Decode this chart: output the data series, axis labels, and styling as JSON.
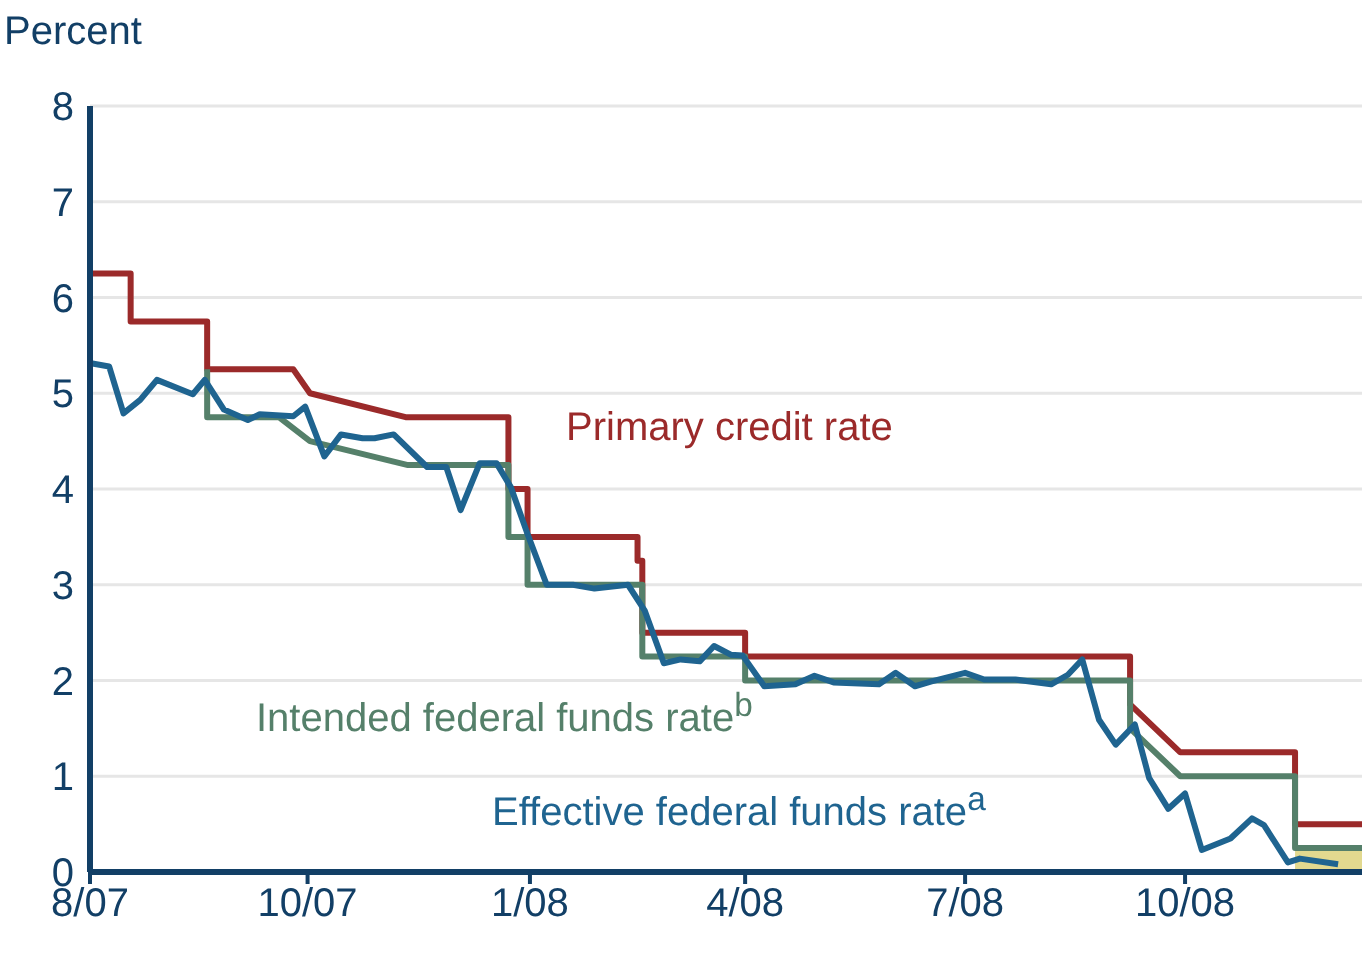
{
  "chart_data": {
    "type": "line",
    "ylabel": "Percent",
    "ylim": [
      0,
      8
    ],
    "yticks": [
      0,
      1,
      2,
      3,
      4,
      5,
      6,
      7,
      8
    ],
    "xlim": [
      "2007-07-31",
      "2009-01-13"
    ],
    "xticks": [
      {
        "value": "2007-07-31",
        "label": "8/07"
      },
      {
        "value": "2007-10-30",
        "label": "10/07"
      },
      {
        "value": "2008-01-31",
        "label": "1/08"
      },
      {
        "value": "2008-04-30",
        "label": "4/08"
      },
      {
        "value": "2008-07-31",
        "label": "7/08"
      },
      {
        "value": "2008-10-31",
        "label": "10/08"
      }
    ],
    "grid": "y",
    "marker": "none",
    "line_style": "solid",
    "series": [
      {
        "type": "area",
        "color": "#e2d98f",
        "x": [
          "2008-12-16",
          "2009-01-13"
        ],
        "values": [
          0.25,
          0.25
        ]
      },
      {
        "name": "Primary credit rate",
        "color": "#9b2a2a",
        "x": [
          "2007-07-31",
          "2007-08-17",
          "2007-08-17",
          "2007-09-18",
          "2007-09-18",
          "2007-10-24",
          "2007-10-31",
          "2007-12-10",
          "2008-01-22",
          "2008-01-22",
          "2008-01-30",
          "2008-01-30",
          "2008-03-16",
          "2008-03-16",
          "2008-03-18",
          "2008-03-18",
          "2008-04-30",
          "2008-04-30",
          "2008-10-08",
          "2008-10-08",
          "2008-10-29",
          "2008-12-16",
          "2008-12-16",
          "2009-01-13"
        ],
        "values": [
          6.25,
          6.25,
          5.75,
          5.75,
          5.25,
          5.25,
          5.0,
          4.75,
          4.75,
          4.0,
          4.0,
          3.5,
          3.5,
          3.25,
          3.25,
          2.5,
          2.5,
          2.25,
          2.25,
          1.75,
          1.25,
          1.25,
          0.5,
          0.5
        ]
      },
      {
        "name": "Intended federal funds rate$^{b}$",
        "color": "#55806a",
        "x": [
          "2007-09-18",
          "2007-09-18",
          "2007-10-18",
          "2007-10-31",
          "2007-12-11",
          "2008-01-22",
          "2008-01-22",
          "2008-01-30",
          "2008-01-30",
          "2008-03-18",
          "2008-03-18",
          "2008-04-30",
          "2008-04-30",
          "2008-10-08",
          "2008-10-08",
          "2008-10-29",
          "2008-12-16",
          "2008-12-16",
          "2009-01-13"
        ],
        "values": [
          5.25,
          4.75,
          4.75,
          4.5,
          4.25,
          4.25,
          3.5,
          3.5,
          3.0,
          3.0,
          2.25,
          2.25,
          2.0,
          2.0,
          1.5,
          1.0,
          1.0,
          0.25,
          0.25
        ]
      },
      {
        "name": "Effective federal funds rate$^{a}$",
        "color": "#1f6490",
        "x": [
          "2007-08-01",
          "2007-08-08",
          "2007-08-14",
          "2007-08-21",
          "2007-08-28",
          "2007-09-12",
          "2007-09-17",
          "2007-09-25",
          "2007-10-05",
          "2007-10-10",
          "2007-10-24",
          "2007-10-29",
          "2007-11-06",
          "2007-11-13",
          "2007-11-22",
          "2007-11-27",
          "2007-12-05",
          "2007-12-19",
          "2007-12-27",
          "2008-01-02",
          "2008-01-10",
          "2008-01-17",
          "2008-01-23",
          "2008-01-30",
          "2008-02-07",
          "2008-02-18",
          "2008-02-27",
          "2008-03-12",
          "2008-03-19",
          "2008-03-27",
          "2008-04-03",
          "2008-04-11",
          "2008-04-17",
          "2008-04-24",
          "2008-04-29",
          "2008-05-08",
          "2008-05-21",
          "2008-05-29",
          "2008-06-06",
          "2008-06-25",
          "2008-07-02",
          "2008-07-10",
          "2008-07-17",
          "2008-07-31",
          "2008-08-08",
          "2008-08-21",
          "2008-09-05",
          "2008-09-12",
          "2008-09-18",
          "2008-09-25",
          "2008-10-02",
          "2008-10-10",
          "2008-10-16",
          "2008-10-24",
          "2008-10-31",
          "2008-11-07",
          "2008-11-19",
          "2008-11-28",
          "2008-12-03",
          "2008-12-13",
          "2008-12-18",
          "2009-01-03"
        ],
        "values": [
          5.31,
          5.28,
          4.79,
          4.93,
          5.14,
          4.99,
          5.14,
          4.83,
          4.72,
          4.78,
          4.76,
          4.86,
          4.34,
          4.57,
          4.53,
          4.53,
          4.57,
          4.23,
          4.23,
          3.78,
          4.27,
          4.27,
          4.02,
          3.53,
          3.0,
          3.0,
          2.96,
          3.0,
          2.73,
          2.18,
          2.22,
          2.2,
          2.36,
          2.27,
          2.26,
          1.94,
          1.96,
          2.05,
          1.98,
          1.96,
          2.08,
          1.94,
          1.99,
          2.08,
          2.01,
          2.01,
          1.96,
          2.06,
          2.22,
          1.59,
          1.33,
          1.54,
          0.98,
          0.66,
          0.82,
          0.23,
          0.35,
          0.56,
          0.49,
          0.1,
          0.14,
          0.08
        ]
      }
    ]
  }
}
